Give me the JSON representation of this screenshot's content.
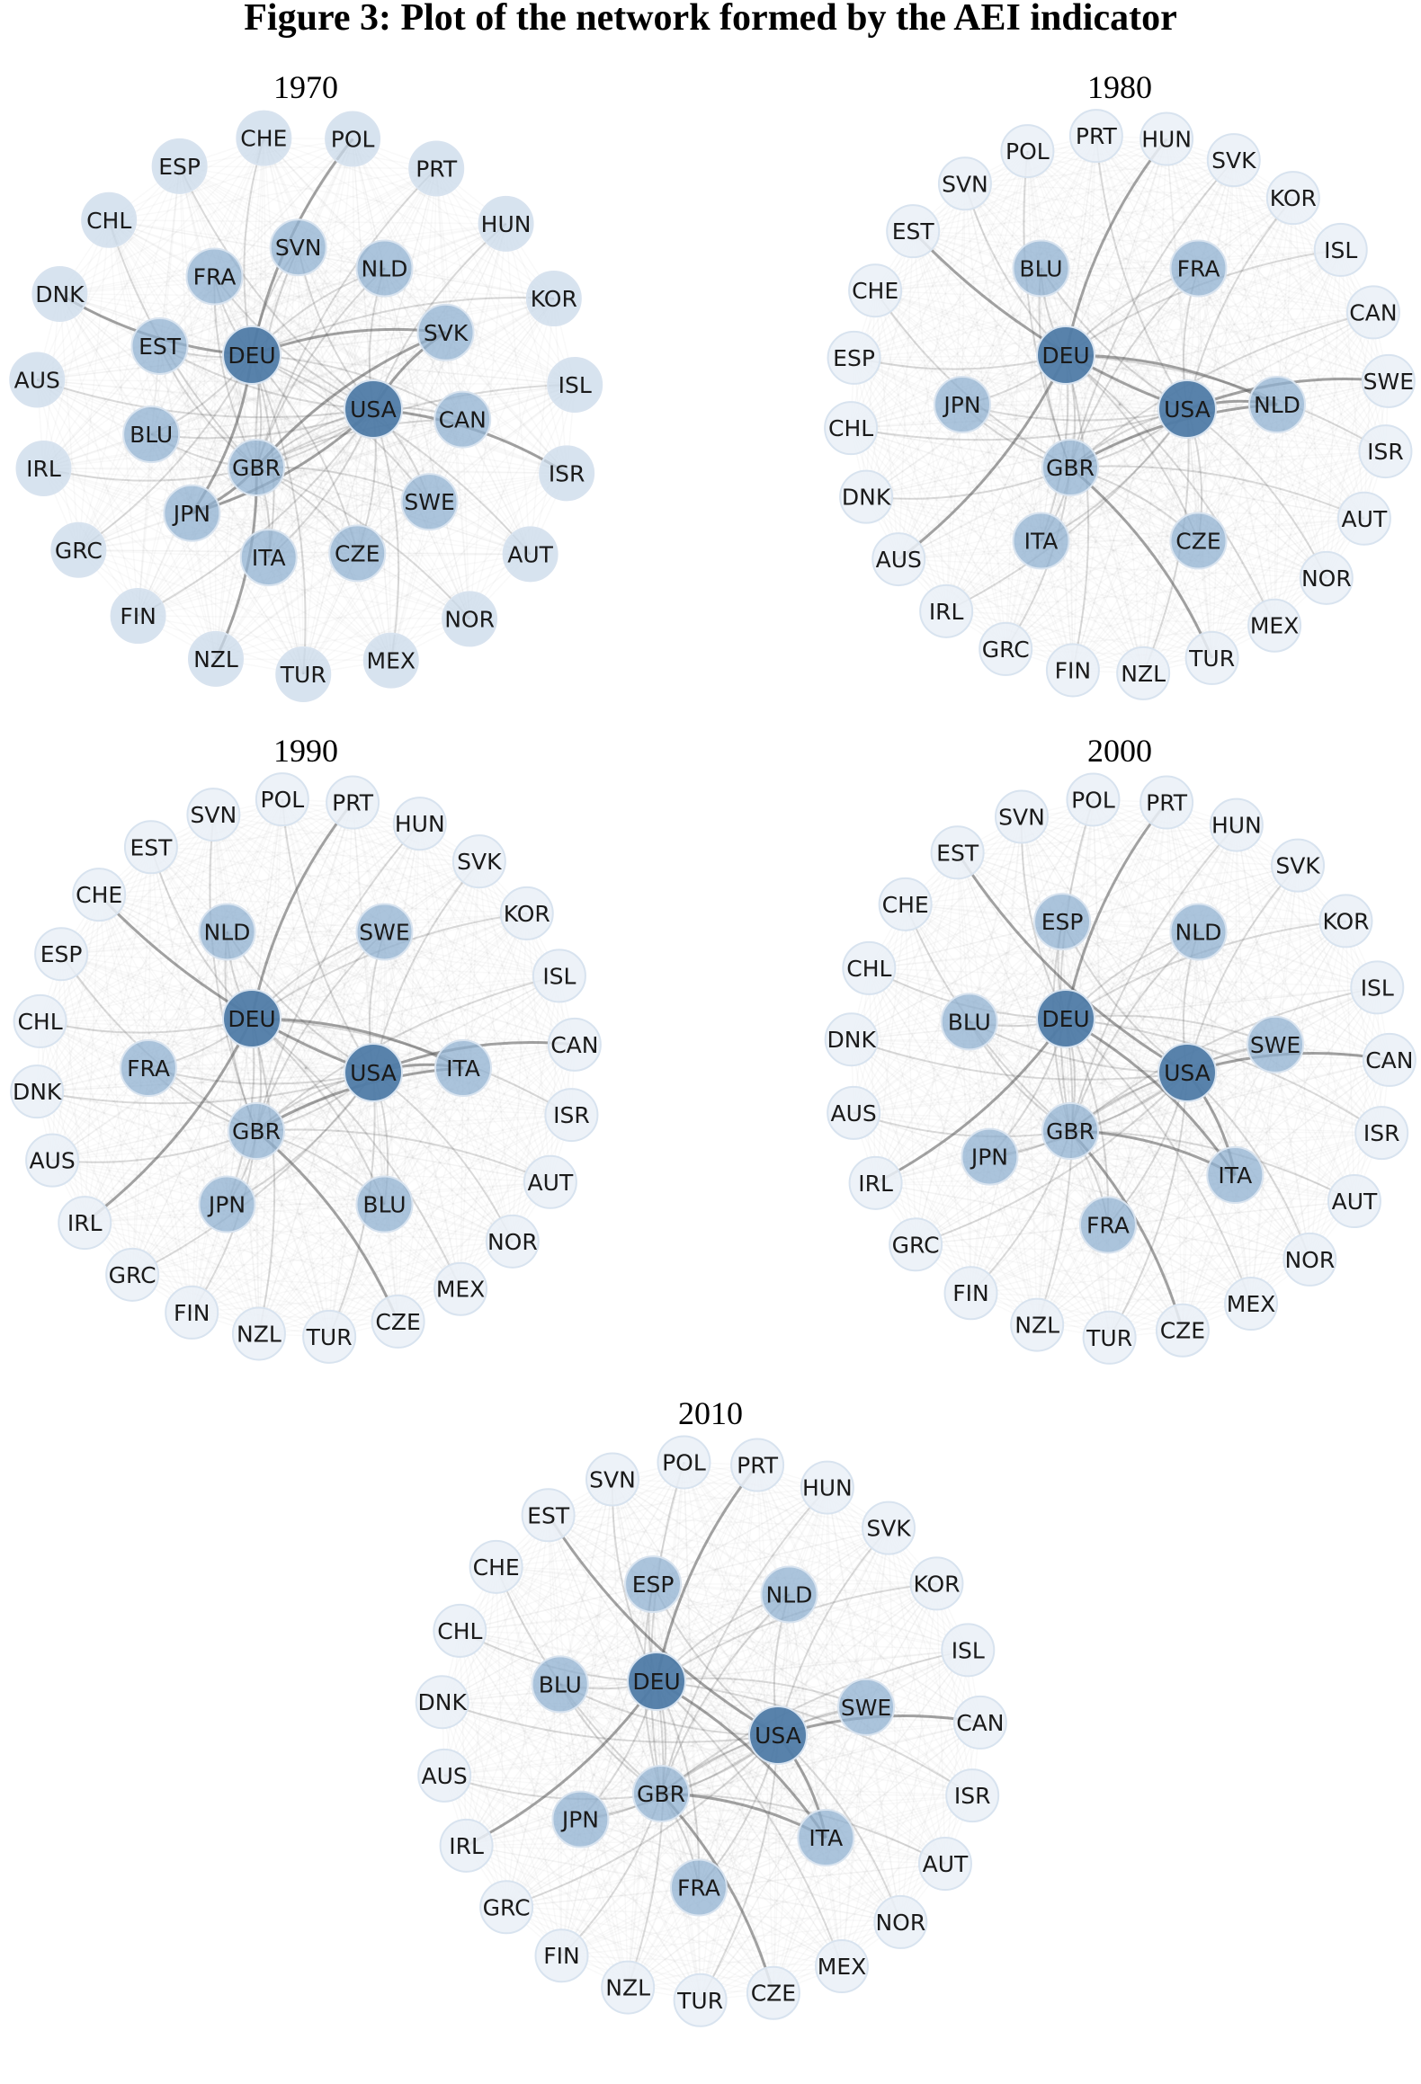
{
  "figure_title": "Figure 3: Plot of the network formed by the AEI indicator",
  "colors": {
    "node_dark": "#4f7ba7",
    "node_mid": "#8fb0d0",
    "node_light": "#c9d9ea",
    "node_faint": "#eaf0f7",
    "edge": "#555555",
    "node_stroke": "#d8e3ef"
  },
  "panels": [
    {
      "year": "1970",
      "outer": [
        "POL",
        "PRT",
        "HUN",
        "KOR",
        "ISL",
        "ISR",
        "AUT",
        "NOR",
        "MEX",
        "TUR",
        "NZL",
        "FIN",
        "GRC",
        "IRL",
        "AUS",
        "DNK",
        "CHL",
        "ESP",
        "CHE"
      ],
      "inner": [
        "NLD",
        "SVK",
        "CAN",
        "SWE",
        "CZE",
        "ITA",
        "JPN",
        "BLU",
        "EST",
        "FRA",
        "SVN"
      ],
      "hubs": [
        "DEU",
        "USA",
        "GBR"
      ],
      "hub_shade": [
        "dark",
        "dark",
        "mid"
      ],
      "inner_shade": "mid",
      "outer_shade": "light"
    },
    {
      "year": "1980",
      "outer": [
        "HUN",
        "SVK",
        "KOR",
        "ISL",
        "CAN",
        "SWE",
        "ISR",
        "AUT",
        "NOR",
        "MEX",
        "TUR",
        "NZL",
        "FIN",
        "GRC",
        "IRL",
        "AUS",
        "DNK",
        "CHL",
        "ESP",
        "CHE",
        "EST",
        "SVN",
        "POL",
        "PRT"
      ],
      "inner": [
        "FRA",
        "NLD",
        "CZE",
        "ITA",
        "JPN",
        "BLU"
      ],
      "hubs": [
        "DEU",
        "USA",
        "GBR"
      ],
      "hub_shade": [
        "dark",
        "dark",
        "mid"
      ],
      "inner_shade": "mid",
      "outer_shade": "faint"
    },
    {
      "year": "1990",
      "outer": [
        "PRT",
        "HUN",
        "SVK",
        "KOR",
        "ISL",
        "CAN",
        "ISR",
        "AUT",
        "NOR",
        "MEX",
        "CZE",
        "TUR",
        "NZL",
        "FIN",
        "GRC",
        "IRL",
        "AUS",
        "DNK",
        "CHL",
        "ESP",
        "CHE",
        "EST",
        "SVN",
        "POL"
      ],
      "inner": [
        "SWE",
        "ITA",
        "BLU",
        "JPN",
        "FRA",
        "NLD"
      ],
      "hubs": [
        "DEU",
        "USA",
        "GBR"
      ],
      "hub_shade": [
        "dark",
        "dark",
        "mid"
      ],
      "inner_shade": "mid",
      "outer_shade": "faint"
    },
    {
      "year": "2000",
      "outer": [
        "PRT",
        "HUN",
        "SVK",
        "KOR",
        "ISL",
        "CAN",
        "ISR",
        "AUT",
        "NOR",
        "MEX",
        "CZE",
        "TUR",
        "NZL",
        "FIN",
        "GRC",
        "IRL",
        "AUS",
        "DNK",
        "CHL",
        "CHE",
        "EST",
        "SVN",
        "POL"
      ],
      "inner": [
        "NLD",
        "SWE",
        "ITA",
        "FRA",
        "JPN",
        "BLU",
        "ESP"
      ],
      "hubs": [
        "DEU",
        "USA",
        "GBR"
      ],
      "hub_shade": [
        "dark",
        "dark",
        "mid"
      ],
      "inner_shade": "mid",
      "outer_shade": "faint"
    },
    {
      "year": "2010",
      "outer": [
        "PRT",
        "HUN",
        "SVK",
        "KOR",
        "ISL",
        "CAN",
        "ISR",
        "AUT",
        "NOR",
        "MEX",
        "CZE",
        "TUR",
        "NZL",
        "FIN",
        "GRC",
        "IRL",
        "AUS",
        "DNK",
        "CHL",
        "CHE",
        "EST",
        "SVN",
        "POL"
      ],
      "inner": [
        "NLD",
        "SWE",
        "ITA",
        "FRA",
        "JPN",
        "BLU",
        "ESP"
      ],
      "hubs": [
        "DEU",
        "USA",
        "GBR"
      ],
      "hub_shade": [
        "dark",
        "dark",
        "mid"
      ],
      "inner_shade": "mid",
      "outer_shade": "faint"
    }
  ]
}
